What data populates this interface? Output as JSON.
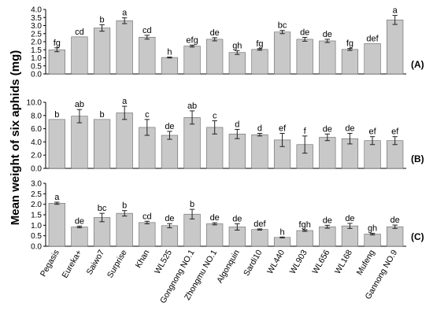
{
  "figure": {
    "ylabel": "Mean weight of six aphids (mg)"
  },
  "chart_data": [
    {
      "type": "bar",
      "panel_label": "(A)",
      "categories": [
        "Pegasis",
        "Eureka+",
        "Saiwo7",
        "Surprise",
        "Khan",
        "WL525",
        "Gongnong NO.1",
        "Zhongmu NO.1",
        "Algonquin",
        "Sardi10",
        "WL440",
        "WL903",
        "WL656",
        "WL168",
        "Mufeng",
        "Gannong NO.9"
      ],
      "values": [
        1.5,
        2.3,
        2.85,
        3.3,
        2.28,
        1.02,
        1.73,
        2.15,
        1.33,
        1.52,
        2.6,
        2.15,
        2.05,
        1.52,
        1.88,
        3.35
      ],
      "errors": [
        0.12,
        0.0,
        0.2,
        0.18,
        0.12,
        0.03,
        0.06,
        0.1,
        0.12,
        0.05,
        0.1,
        0.12,
        0.1,
        0.06,
        0.0,
        0.28
      ],
      "letters": [
        "fg",
        "cd",
        "b",
        "a",
        "cd",
        "h",
        "efg",
        "de",
        "gh",
        "fg",
        "bc",
        "de",
        "de",
        "fg",
        "def",
        "a"
      ],
      "ylim": [
        0,
        4.0
      ],
      "yticks": [
        "0.0",
        "0.5",
        "1.0",
        "1.5",
        "2.0",
        "2.5",
        "3.0",
        "3.5",
        "4.0"
      ],
      "grid": false,
      "bar_color": "#c8c8c8"
    },
    {
      "type": "bar",
      "panel_label": "(B)",
      "categories": [
        "Pegasis",
        "Eureka+",
        "Saiwo7",
        "Surprise",
        "Khan",
        "WL525",
        "Gongnong NO.1",
        "Zhongmu NO.1",
        "Algonquin",
        "Sardi10",
        "WL440",
        "WL903",
        "WL656",
        "WL168",
        "Mufeng",
        "Gannong NO.9"
      ],
      "values": [
        7.4,
        7.9,
        7.4,
        8.4,
        6.2,
        5.0,
        7.7,
        6.2,
        5.2,
        5.1,
        4.3,
        3.6,
        4.7,
        4.5,
        4.2,
        4.2
      ],
      "errors": [
        0.0,
        1.0,
        0.0,
        1.0,
        1.2,
        0.6,
        1.0,
        1.0,
        0.7,
        0.2,
        1.0,
        1.3,
        0.5,
        0.8,
        0.6,
        0.6
      ],
      "letters": [
        "b",
        "ab",
        "b",
        "a",
        "c",
        "de",
        "ab",
        "c",
        "d",
        "d",
        "ef",
        "f",
        "de",
        "de",
        "ef",
        "ef"
      ],
      "ylim": [
        0,
        10.0
      ],
      "yticks": [
        "0.0",
        "2.0",
        "4.0",
        "6.0",
        "8.0",
        "10.0"
      ],
      "grid": false,
      "bar_color": "#c8c8c8"
    },
    {
      "type": "bar",
      "panel_label": "(C)",
      "categories": [
        "Pegasis",
        "Eureka+",
        "Saiwo7",
        "Surprise",
        "Khan",
        "WL525",
        "Gongnong NO.1",
        "Zhongmu NO.1",
        "Algonquin",
        "Sardi10",
        "WL440",
        "WL903",
        "WL656",
        "WL168",
        "Mufeng",
        "Gannong NO.9"
      ],
      "values": [
        2.05,
        0.92,
        1.37,
        1.57,
        1.13,
        0.98,
        1.53,
        1.07,
        0.92,
        0.8,
        0.42,
        0.75,
        0.93,
        0.97,
        0.58,
        0.93
      ],
      "errors": [
        0.05,
        0.04,
        0.2,
        0.13,
        0.06,
        0.1,
        0.23,
        0.05,
        0.15,
        0.03,
        0.02,
        0.04,
        0.07,
        0.12,
        0.04,
        0.08
      ],
      "letters": [
        "a",
        "de",
        "bc",
        "b",
        "cd",
        "de",
        "b",
        "de",
        "de",
        "def",
        "h",
        "fgh",
        "de",
        "de",
        "gh",
        "de"
      ],
      "ylim": [
        0,
        3.0
      ],
      "yticks": [
        "0.0",
        "0.5",
        "1.0",
        "1.5",
        "2.0",
        "2.5",
        "3.0"
      ],
      "grid": false,
      "bar_color": "#c8c8c8"
    }
  ]
}
